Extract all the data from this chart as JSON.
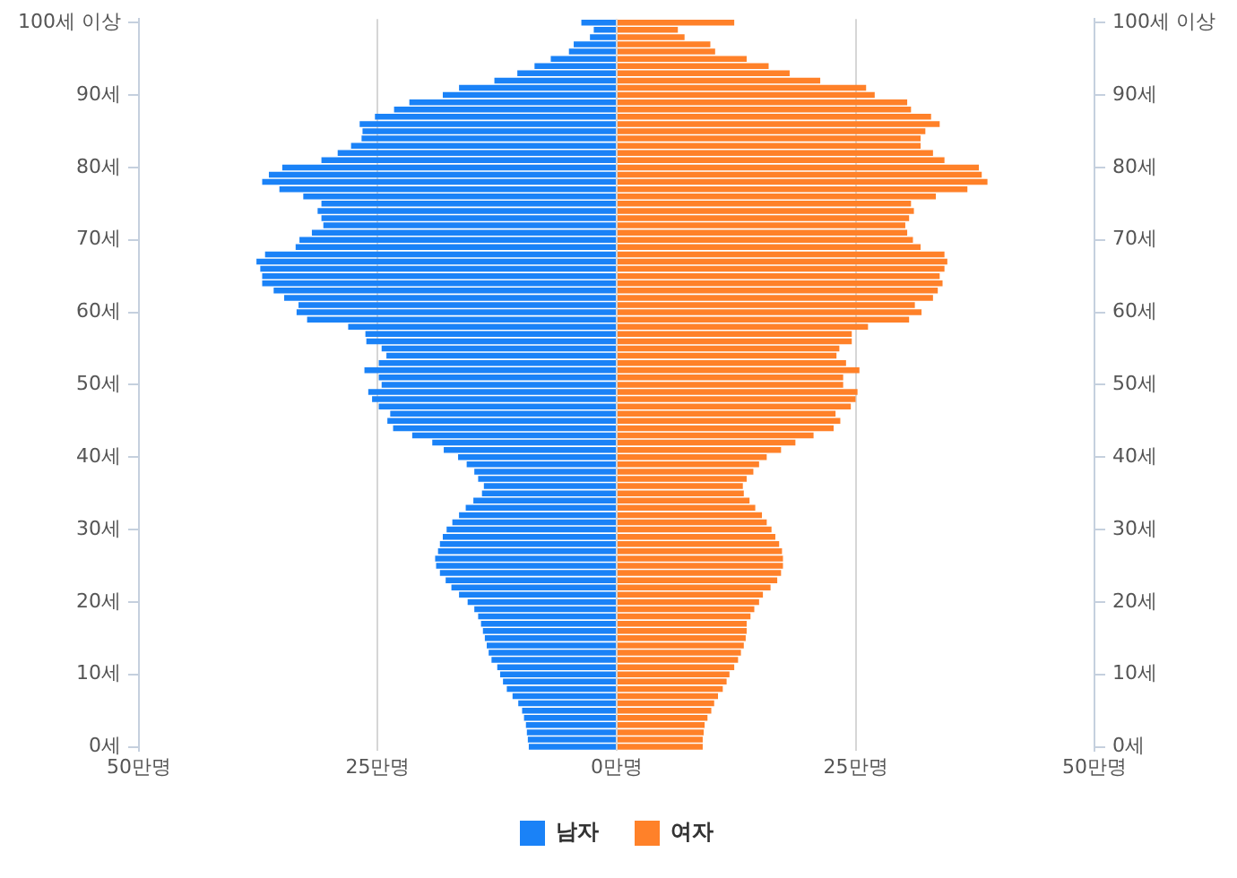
{
  "chart_data": {
    "type": "bar",
    "orientation": "horizontal",
    "stacked": true,
    "grid": "x",
    "legend": "bottom",
    "categories": [
      "100세 이상",
      null,
      null,
      null,
      null,
      null,
      null,
      null,
      null,
      null,
      "90세",
      null,
      null,
      null,
      null,
      null,
      null,
      null,
      null,
      null,
      "80세",
      null,
      null,
      null,
      null,
      null,
      null,
      null,
      null,
      null,
      "70세",
      null,
      null,
      null,
      null,
      null,
      null,
      null,
      null,
      null,
      "60세",
      null,
      null,
      null,
      null,
      null,
      null,
      null,
      null,
      null,
      "50세",
      null,
      null,
      null,
      null,
      null,
      null,
      null,
      null,
      null,
      "40세",
      null,
      null,
      null,
      null,
      null,
      null,
      null,
      null,
      null,
      "30세",
      null,
      null,
      null,
      null,
      null,
      null,
      null,
      null,
      null,
      "20세",
      null,
      null,
      null,
      null,
      null,
      null,
      null,
      null,
      null,
      "10세",
      null,
      null,
      null,
      null,
      null,
      null,
      null,
      null,
      null,
      "0세"
    ],
    "xlim": [
      -50,
      50
    ],
    "xticks": [
      {
        "value": -50,
        "label": "50만명"
      },
      {
        "value": -25,
        "label": "25만명"
      },
      {
        "value": 0,
        "label": "0만명"
      },
      {
        "value": 25,
        "label": "25만명"
      },
      {
        "value": 50,
        "label": "50만명"
      }
    ],
    "series": [
      {
        "name": "남자",
        "color": "#1a82f7",
        "values": [
          -3.7,
          -2.4,
          -2.8,
          -4.5,
          -5.0,
          -6.9,
          -8.6,
          -10.4,
          -12.8,
          -16.5,
          -18.2,
          -21.7,
          -23.3,
          -25.3,
          -26.9,
          -26.6,
          -26.7,
          -27.8,
          -29.2,
          -30.9,
          -35.0,
          -36.4,
          -37.1,
          -35.3,
          -32.8,
          -30.9,
          -31.3,
          -30.9,
          -30.7,
          -31.9,
          -33.2,
          -33.6,
          -36.8,
          -37.7,
          -37.3,
          -37.1,
          -37.1,
          -35.9,
          -34.8,
          -33.3,
          -33.5,
          -32.4,
          -28.1,
          -26.3,
          -26.2,
          -24.6,
          -24.1,
          -24.9,
          -26.4,
          -24.9,
          -24.6,
          -26.0,
          -25.6,
          -24.9,
          -23.7,
          -24.0,
          -23.4,
          -21.4,
          -19.3,
          -18.1,
          -16.6,
          -15.7,
          -14.9,
          -14.5,
          -13.9,
          -14.1,
          -15.0,
          -15.8,
          -16.5,
          -17.2,
          -17.8,
          -18.2,
          -18.5,
          -18.7,
          -19.0,
          -18.9,
          -18.5,
          -17.9,
          -17.3,
          -16.5,
          -15.6,
          -14.9,
          -14.5,
          -14.2,
          -14.0,
          -13.8,
          -13.6,
          -13.4,
          -13.1,
          -12.5,
          -12.2,
          -11.9,
          -11.5,
          -10.9,
          -10.3,
          -9.9,
          -9.7,
          -9.5,
          -9.4,
          -9.3,
          -9.2
        ]
      },
      {
        "name": "여자",
        "color": "#ff8129",
        "values": [
          12.3,
          6.4,
          7.1,
          9.8,
          10.3,
          13.6,
          15.9,
          18.1,
          21.3,
          26.1,
          27.0,
          30.4,
          30.8,
          32.9,
          33.8,
          32.3,
          31.8,
          31.8,
          33.1,
          34.3,
          37.9,
          38.2,
          38.8,
          36.7,
          33.4,
          30.8,
          31.1,
          30.6,
          30.2,
          30.4,
          31.0,
          31.8,
          34.3,
          34.6,
          34.3,
          33.8,
          34.1,
          33.6,
          33.1,
          31.2,
          31.9,
          30.6,
          26.3,
          24.6,
          24.6,
          23.3,
          23.0,
          24.0,
          25.4,
          23.7,
          23.7,
          25.2,
          25.0,
          24.5,
          22.9,
          23.4,
          22.7,
          20.6,
          18.7,
          17.2,
          15.7,
          14.9,
          14.3,
          13.6,
          13.2,
          13.3,
          13.9,
          14.5,
          15.2,
          15.7,
          16.2,
          16.6,
          17.0,
          17.3,
          17.4,
          17.4,
          17.2,
          16.8,
          16.1,
          15.3,
          14.9,
          14.4,
          14.0,
          13.6,
          13.6,
          13.5,
          13.3,
          13.0,
          12.7,
          12.3,
          11.8,
          11.5,
          11.1,
          10.6,
          10.2,
          9.9,
          9.5,
          9.2,
          9.1,
          9.0,
          9.0
        ]
      }
    ]
  }
}
